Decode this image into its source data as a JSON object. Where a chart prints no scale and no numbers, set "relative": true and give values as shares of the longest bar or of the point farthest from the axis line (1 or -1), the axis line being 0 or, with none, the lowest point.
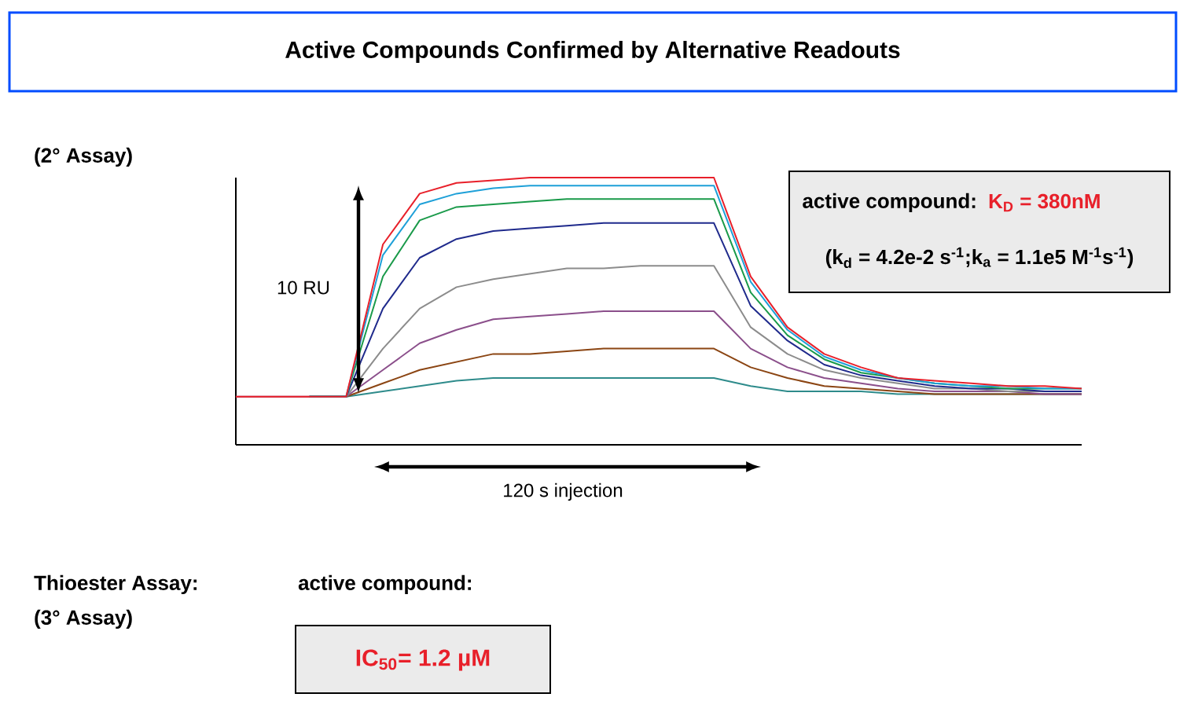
{
  "chart_data": {
    "type": "line",
    "relative": true,
    "title": "Active Compounds Confirmed by Alternative Readouts",
    "categories": [
      null,
      null,
      null,
      null,
      null,
      null,
      null,
      null,
      null,
      null,
      null,
      null,
      null,
      null,
      null,
      null,
      null,
      null,
      null,
      null,
      null,
      null,
      null,
      null
    ],
    "series": [
      {
        "color": "#2e8b8b",
        "values": [
          null,
          null,
          0.18,
          0.18,
          0.2,
          0.22,
          0.24,
          0.25,
          0.25,
          0.25,
          0.25,
          0.25,
          0.25,
          0.25,
          0.22,
          0.2,
          0.2,
          0.2,
          0.19,
          0.19,
          0.19,
          0.19,
          0.19,
          0.19
        ]
      },
      {
        "color": "#8b4513",
        "values": [
          null,
          null,
          0.18,
          0.18,
          0.23,
          0.28,
          0.31,
          0.34,
          0.34,
          0.35,
          0.36,
          0.36,
          0.36,
          0.36,
          0.29,
          0.25,
          0.22,
          0.21,
          0.2,
          0.19,
          0.19,
          0.19,
          0.19,
          0.19
        ]
      },
      {
        "color": "#8b4f8b",
        "values": [
          0.18,
          0.18,
          0.18,
          0.18,
          0.28,
          0.38,
          0.43,
          0.47,
          0.48,
          0.49,
          0.5,
          0.5,
          0.5,
          0.5,
          0.36,
          0.29,
          0.25,
          0.23,
          0.21,
          0.2,
          0.2,
          0.2,
          0.19,
          0.19
        ]
      },
      {
        "color": "#8c8c8c",
        "values": [
          null,
          null,
          0.18,
          0.18,
          0.36,
          0.51,
          0.59,
          0.62,
          0.64,
          0.66,
          0.66,
          0.67,
          0.67,
          0.67,
          0.44,
          0.34,
          0.28,
          0.25,
          0.23,
          0.21,
          0.21,
          0.2,
          0.2,
          0.2
        ]
      },
      {
        "color": "#1f2a8c",
        "values": [
          null,
          null,
          0.18,
          0.18,
          0.51,
          0.7,
          0.77,
          0.8,
          0.81,
          0.82,
          0.83,
          0.83,
          0.83,
          0.83,
          0.52,
          0.39,
          0.3,
          0.26,
          0.24,
          0.22,
          0.21,
          0.21,
          0.2,
          0.2
        ]
      },
      {
        "color": "#1a9a4a",
        "values": [
          null,
          null,
          0.18,
          0.18,
          0.63,
          0.84,
          0.89,
          0.9,
          0.91,
          0.92,
          0.92,
          0.92,
          0.92,
          0.92,
          0.57,
          0.41,
          0.32,
          0.27,
          0.25,
          0.23,
          0.22,
          0.21,
          0.21,
          0.21
        ]
      },
      {
        "color": "#1ea0d8",
        "values": [
          null,
          null,
          0.18,
          0.18,
          0.71,
          0.9,
          0.94,
          0.96,
          0.97,
          0.97,
          0.97,
          0.97,
          0.97,
          0.97,
          0.61,
          0.43,
          0.33,
          0.28,
          0.25,
          0.23,
          0.22,
          0.22,
          0.21,
          0.21
        ]
      },
      {
        "color": "#e8202a",
        "values": [
          0.18,
          0.18,
          0.18,
          0.18,
          0.75,
          0.94,
          0.98,
          0.99,
          1,
          1,
          1,
          1,
          1,
          1,
          0.63,
          0.44,
          0.34,
          0.29,
          0.25,
          0.24,
          0.23,
          0.22,
          0.22,
          0.21
        ]
      }
    ],
    "annotations": [
      "(2° Assay)",
      "10 RU",
      "120 s injection",
      "active compound:",
      "K$_{D}$ = 380nM",
      "(k$_{d}$ = 4.2e-2 s$^{-1}$;k$_{a}$ = 1.1e5 M$^{-1}$s$^{-1}$)",
      "Thioester Assay:",
      "(3° Assay)",
      "active compound:",
      "IC$_{50}$= 1.2 µM"
    ]
  }
}
